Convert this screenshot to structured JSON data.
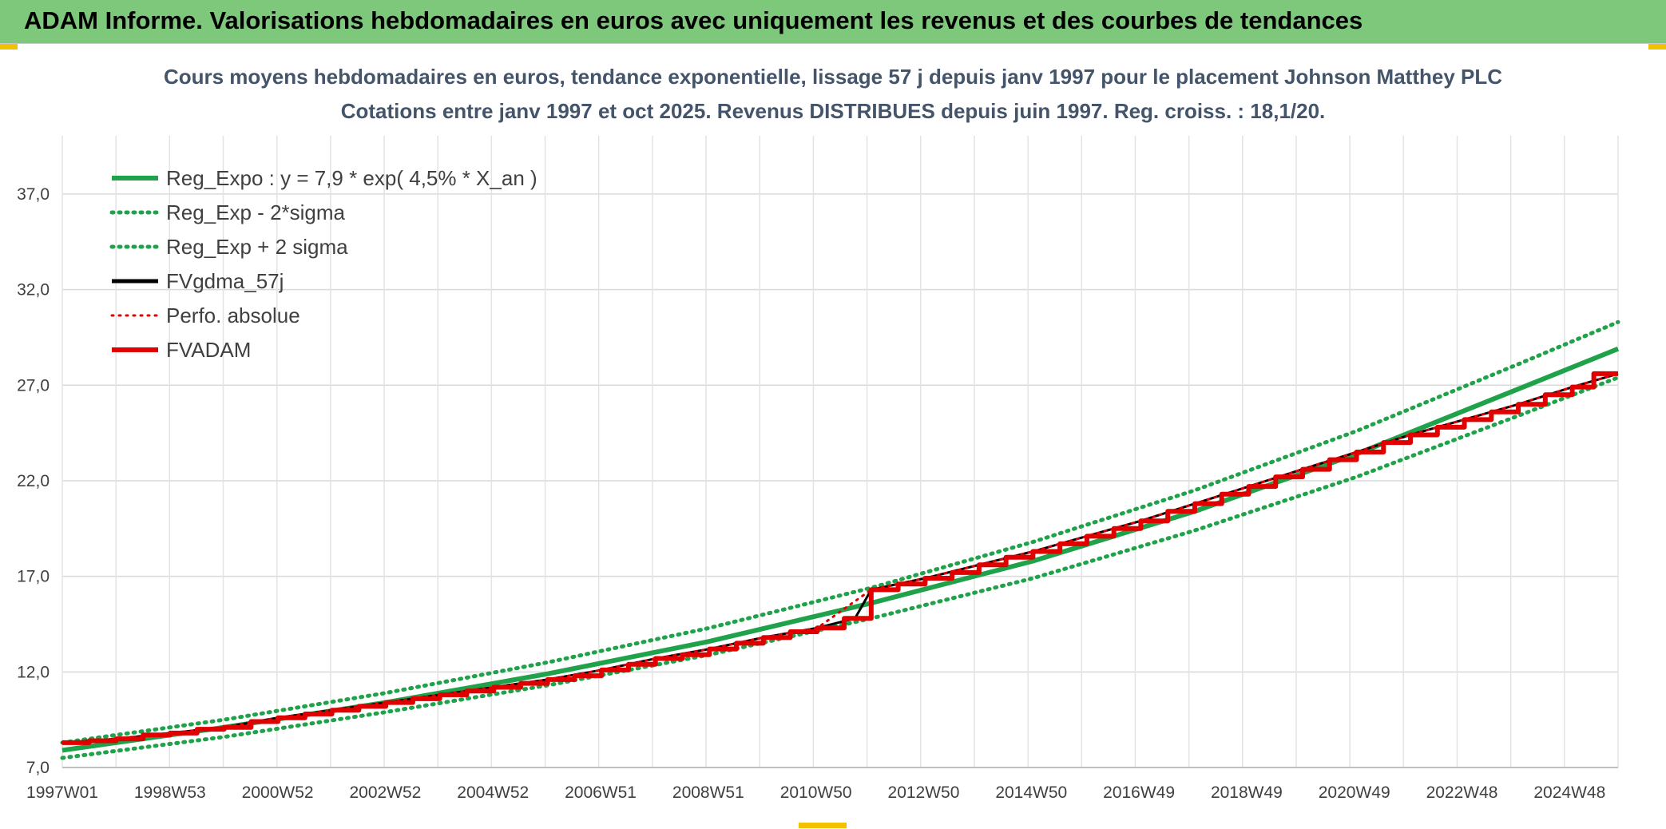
{
  "banner": {
    "title": "ADAM Informe. Valorisations hebdomadaires en euros avec uniquement les revenus et des courbes de tendances"
  },
  "chart_data": {
    "type": "line",
    "title_lines": [
      "Cours moyens hebdomadaires en euros, tendance exponentielle, lissage 57 j depuis janv 1997 pour le placement Johnson Matthey PLC",
      "Cotations entre janv 1997 et oct 2025. Revenus DISTRIBUES depuis juin 1997. Reg. croiss. : 18,1/20."
    ],
    "ylim": [
      7.0,
      39.0
    ],
    "yticks": [
      7.0,
      12.0,
      17.0,
      22.0,
      27.0,
      32.0,
      37.0
    ],
    "ytick_labels": [
      "7,0",
      "12,0",
      "17,0",
      "22,0",
      "27,0",
      "32,0",
      "37,0"
    ],
    "xlim": [
      1997.0,
      2025.85
    ],
    "xtick_labels": [
      "1997W01",
      "1998W53",
      "2000W52",
      "2002W52",
      "2004W52",
      "2006W51",
      "2008W51",
      "2010W50",
      "2012W50",
      "2014W50",
      "2016W49",
      "2018W49",
      "2020W49",
      "2022W48",
      "2024W48"
    ],
    "grid": true,
    "legend_position": "top-left",
    "series": [
      {
        "name": "Reg_Expo : y = 7,9 * exp( 4,5% *  X_an )",
        "color": "#1fa24a",
        "style": "solid",
        "x": [
          1997.0,
          2000.0,
          2003.0,
          2006.0,
          2009.0,
          2012.0,
          2015.0,
          2018.0,
          2021.0,
          2024.0,
          2025.85
        ],
        "y": [
          7.9,
          9.1,
          10.4,
          11.9,
          13.6,
          15.6,
          17.8,
          20.4,
          23.4,
          26.8,
          28.9
        ]
      },
      {
        "name": "Reg_Exp - 2*sigma",
        "color": "#1fa24a",
        "style": "dotted",
        "x": [
          1997.0,
          2000.0,
          2003.0,
          2006.0,
          2009.0,
          2012.0,
          2015.0,
          2018.0,
          2021.0,
          2024.0,
          2025.85
        ],
        "y": [
          7.5,
          8.6,
          9.9,
          11.3,
          12.9,
          14.8,
          16.9,
          19.4,
          22.2,
          25.4,
          27.4
        ]
      },
      {
        "name": "Reg_Exp + 2 sigma",
        "color": "#1fa24a",
        "style": "dotted",
        "x": [
          1997.0,
          2000.0,
          2003.0,
          2006.0,
          2009.0,
          2012.0,
          2015.0,
          2018.0,
          2021.0,
          2024.0,
          2025.85
        ],
        "y": [
          8.3,
          9.5,
          10.9,
          12.5,
          14.3,
          16.4,
          18.8,
          21.5,
          24.6,
          28.1,
          30.3
        ]
      },
      {
        "name": "FVgdma_57j",
        "color": "#000000",
        "style": "solid",
        "x": [
          1997.0,
          1998.0,
          1999.0,
          2000.0,
          2001.0,
          2002.0,
          2003.0,
          2004.0,
          2005.0,
          2006.0,
          2007.0,
          2008.0,
          2009.0,
          2010.0,
          2011.0,
          2011.7,
          2012.0,
          2013.0,
          2014.0,
          2015.0,
          2016.0,
          2017.0,
          2018.0,
          2019.0,
          2020.0,
          2021.0,
          2022.0,
          2023.0,
          2024.0,
          2025.0,
          2025.85
        ],
        "y": [
          8.3,
          8.5,
          8.8,
          9.1,
          9.6,
          10.0,
          10.4,
          10.8,
          11.2,
          11.6,
          12.1,
          12.7,
          13.2,
          13.8,
          14.3,
          14.8,
          16.3,
          16.9,
          17.6,
          18.3,
          19.1,
          19.9,
          20.8,
          21.7,
          22.6,
          23.5,
          24.4,
          25.2,
          26.0,
          26.9,
          27.6
        ]
      },
      {
        "name": "Perfo. absolue",
        "color": "#e10000",
        "style": "dotted",
        "x": [
          1997.0,
          1998.0,
          1999.0,
          2000.0,
          2001.0,
          2002.0,
          2003.0,
          2004.0,
          2005.0,
          2006.0,
          2007.0,
          2008.0,
          2009.0,
          2010.0,
          2011.0,
          2012.0,
          2013.0,
          2014.0,
          2015.0,
          2016.0,
          2017.0,
          2018.0,
          2019.0,
          2020.0,
          2021.0,
          2022.0,
          2023.0,
          2024.0,
          2025.0,
          2025.85
        ],
        "y": [
          8.3,
          8.5,
          8.8,
          9.1,
          9.6,
          10.0,
          10.4,
          10.8,
          11.2,
          11.6,
          12.1,
          12.7,
          13.2,
          13.8,
          14.3,
          16.3,
          16.9,
          17.6,
          18.3,
          19.1,
          19.9,
          20.8,
          21.7,
          22.6,
          23.5,
          24.4,
          25.2,
          26.0,
          26.9,
          27.6
        ]
      },
      {
        "name": "FVADAM",
        "color": "#e10000",
        "style": "step",
        "x": [
          1997.0,
          1997.5,
          1998.0,
          1998.5,
          1999.0,
          1999.5,
          2000.0,
          2000.5,
          2001.0,
          2001.5,
          2002.0,
          2002.5,
          2003.0,
          2003.5,
          2004.0,
          2004.5,
          2005.0,
          2005.5,
          2006.0,
          2006.5,
          2007.0,
          2007.5,
          2008.0,
          2008.5,
          2009.0,
          2009.5,
          2010.0,
          2010.5,
          2011.0,
          2011.5,
          2012.0,
          2012.5,
          2013.0,
          2013.5,
          2014.0,
          2014.5,
          2015.0,
          2015.5,
          2016.0,
          2016.5,
          2017.0,
          2017.5,
          2018.0,
          2018.5,
          2019.0,
          2019.5,
          2020.0,
          2020.5,
          2021.0,
          2021.5,
          2022.0,
          2022.5,
          2023.0,
          2023.5,
          2024.0,
          2024.5,
          2025.0,
          2025.4,
          2025.85
        ],
        "y": [
          8.3,
          8.4,
          8.5,
          8.7,
          8.8,
          9.0,
          9.1,
          9.4,
          9.6,
          9.8,
          10.0,
          10.2,
          10.4,
          10.6,
          10.8,
          11.0,
          11.2,
          11.4,
          11.6,
          11.8,
          12.1,
          12.4,
          12.7,
          12.9,
          13.2,
          13.5,
          13.8,
          14.1,
          14.3,
          14.8,
          16.3,
          16.6,
          16.9,
          17.2,
          17.6,
          18.0,
          18.3,
          18.7,
          19.1,
          19.5,
          19.9,
          20.4,
          20.8,
          21.3,
          21.7,
          22.2,
          22.6,
          23.1,
          23.5,
          24.0,
          24.4,
          24.8,
          25.2,
          25.6,
          26.0,
          26.5,
          26.9,
          27.6,
          27.6
        ]
      }
    ]
  }
}
